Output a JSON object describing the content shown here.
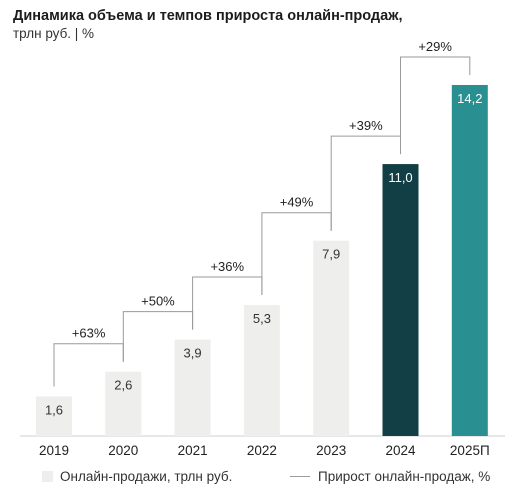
{
  "header": {
    "title": "Динамика объема и темпов прироста онлайн-продаж,",
    "subtitle": "трлн руб. | %"
  },
  "colors": {
    "bar_light": "#eeefed",
    "bar_dark": "#123f45",
    "bar_teal": "#2a8f91",
    "bracket_line": "#9a9a9a",
    "axis_line": "#cfcfcf",
    "value_dark_text": "#333333",
    "value_light_text": "#ffffff"
  },
  "legend": {
    "bars_label": "Онлайн-продажи, трлн руб.",
    "line_label": "Прирост онлайн-продаж, %"
  },
  "chart_data": {
    "type": "bar",
    "categories": [
      "2019",
      "2020",
      "2021",
      "2022",
      "2023",
      "2024",
      "2025П"
    ],
    "series": [
      {
        "name": "Онлайн-продажи, трлн руб.",
        "values": [
          1.6,
          2.6,
          3.9,
          5.3,
          7.9,
          11.0,
          14.2
        ],
        "value_labels": [
          "1,6",
          "2,6",
          "3,9",
          "5,3",
          "7,9",
          "11,0",
          "14,2"
        ],
        "bar_colors": [
          "light",
          "light",
          "light",
          "light",
          "light",
          "dark",
          "teal"
        ]
      }
    ],
    "growth": {
      "name": "Прирост онлайн-продаж, %",
      "labels": [
        "+63%",
        "+50%",
        "+36%",
        "+49%",
        "+39%",
        "+29%"
      ],
      "values": [
        63,
        50,
        36,
        49,
        39,
        29
      ]
    },
    "ylim": [
      0,
      16
    ],
    "grid": false,
    "legend_position": "bottom"
  }
}
